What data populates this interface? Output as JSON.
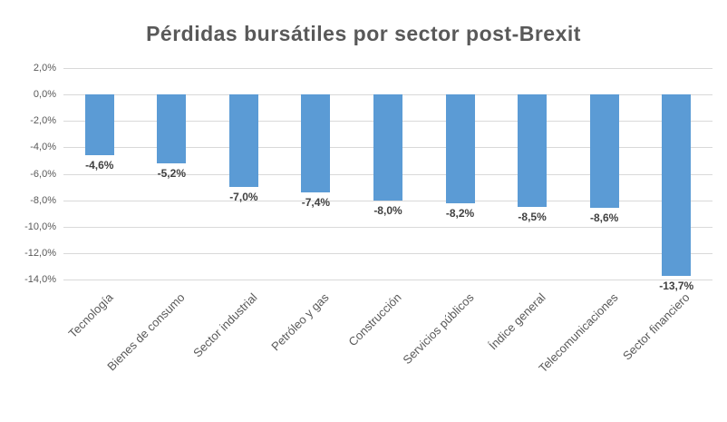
{
  "title": "Pérdidas bursátiles por sector post-Brexit",
  "colors": {
    "bar": "#5B9BD5",
    "grid": "#D9D9D9",
    "title_text": "#595959",
    "axis_text": "#595959",
    "data_label_text": "#404040",
    "background": "#FFFFFF"
  },
  "chart_data": {
    "type": "bar",
    "title": "Pérdidas bursátiles por sector post-Brexit",
    "categories": [
      "Tecnología",
      "Bienes de consumo",
      "Sector industrial",
      "Petróleo y gas",
      "Construcción",
      "Servicios públicos",
      "Índice general",
      "Telecomunicaciones",
      "Sector financiero"
    ],
    "values": [
      -4.6,
      -5.2,
      -7.0,
      -7.4,
      -8.0,
      -8.2,
      -8.5,
      -8.6,
      -13.7
    ],
    "value_labels": [
      "-4,6%",
      "-5,2%",
      "-7,0%",
      "-7,4%",
      "-8,0%",
      "-8,2%",
      "-8,5%",
      "-8,6%",
      "-13,7%"
    ],
    "y_ticks": [
      2,
      0,
      -2,
      -4,
      -6,
      -8,
      -10,
      -12,
      -14
    ],
    "y_tick_labels": [
      "2,0%",
      "0,0%",
      "-2,0%",
      "-4,0%",
      "-6,0%",
      "-8,0%",
      "-10,0%",
      "-12,0%",
      "-14,0%"
    ],
    "ylim": [
      -14,
      2
    ],
    "xlabel": "",
    "ylabel": "",
    "grid": true,
    "legend": "none",
    "orientation": "vertical",
    "bar_color": "#5B9BD5"
  }
}
